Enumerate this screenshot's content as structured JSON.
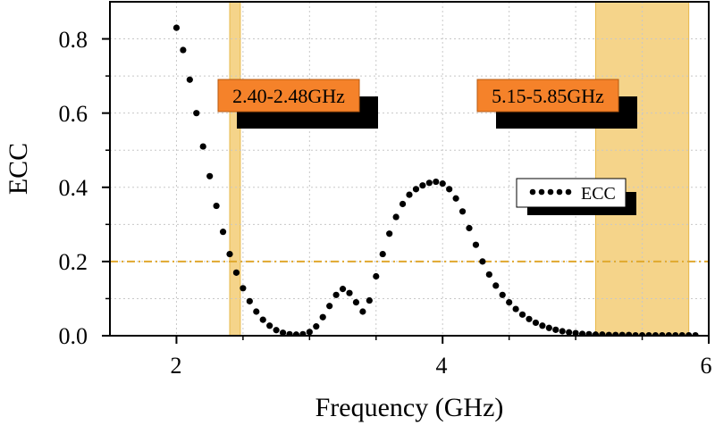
{
  "colors": {
    "band_fill": "#f5d48a",
    "band_stroke": "#e8b84a",
    "threshold": "#e0a82e",
    "grid": "#c8c8c8",
    "box_fill": "#f5822a",
    "shadow": "#000000",
    "series": "#000000"
  },
  "chart_data": {
    "type": "scatter",
    "title": "",
    "xlabel": "Frequency (GHz)",
    "ylabel": "ECC",
    "xlim": [
      1.5,
      6.0
    ],
    "ylim": [
      0.0,
      0.9
    ],
    "xticks": [
      2,
      4,
      6
    ],
    "yticks": [
      0.0,
      0.2,
      0.4,
      0.6,
      0.8
    ],
    "x_tick_labels": [
      "2",
      "4",
      "6"
    ],
    "y_tick_labels": [
      "0.0",
      "0.2",
      "0.4",
      "0.6",
      "0.8"
    ],
    "grid": true,
    "legend_position": "right-middle",
    "bands": [
      {
        "name": "band-2p4",
        "label": "2.40-2.48GHz",
        "x_start": 2.4,
        "x_end": 2.48
      },
      {
        "name": "band-5g",
        "label": "5.15-5.85GHz",
        "x_start": 5.15,
        "x_end": 5.85
      }
    ],
    "threshold": {
      "y": 0.2,
      "style": "dash-dot"
    },
    "series": [
      {
        "name": "ECC",
        "marker": "dotted-line",
        "x": [
          2.0,
          2.05,
          2.1,
          2.15,
          2.2,
          2.25,
          2.3,
          2.35,
          2.4,
          2.45,
          2.5,
          2.55,
          2.6,
          2.65,
          2.7,
          2.75,
          2.8,
          2.85,
          2.9,
          2.95,
          3.0,
          3.05,
          3.1,
          3.15,
          3.2,
          3.25,
          3.3,
          3.35,
          3.4,
          3.45,
          3.5,
          3.55,
          3.6,
          3.65,
          3.7,
          3.75,
          3.8,
          3.85,
          3.9,
          3.95,
          4.0,
          4.05,
          4.1,
          4.15,
          4.2,
          4.25,
          4.3,
          4.35,
          4.4,
          4.45,
          4.5,
          4.55,
          4.6,
          4.65,
          4.7,
          4.75,
          4.8,
          4.85,
          4.9,
          4.95,
          5.0,
          5.05,
          5.1,
          5.15,
          5.2,
          5.25,
          5.3,
          5.35,
          5.4,
          5.45,
          5.5,
          5.55,
          5.6,
          5.65,
          5.7,
          5.75,
          5.8,
          5.85,
          5.9
        ],
        "y": [
          0.83,
          0.77,
          0.69,
          0.6,
          0.51,
          0.43,
          0.35,
          0.28,
          0.22,
          0.17,
          0.128,
          0.093,
          0.065,
          0.043,
          0.027,
          0.015,
          0.008,
          0.004,
          0.003,
          0.004,
          0.01,
          0.025,
          0.05,
          0.08,
          0.11,
          0.126,
          0.115,
          0.09,
          0.065,
          0.095,
          0.16,
          0.22,
          0.275,
          0.32,
          0.355,
          0.38,
          0.395,
          0.405,
          0.412,
          0.415,
          0.41,
          0.395,
          0.37,
          0.335,
          0.29,
          0.245,
          0.2,
          0.165,
          0.135,
          0.11,
          0.09,
          0.072,
          0.057,
          0.045,
          0.035,
          0.027,
          0.021,
          0.016,
          0.012,
          0.009,
          0.007,
          0.005,
          0.004,
          0.003,
          0.003,
          0.002,
          0.002,
          0.002,
          0.002,
          0.001,
          0.001,
          0.001,
          0.001,
          0.001,
          0.001,
          0.001,
          0.001,
          0.001,
          0.001
        ]
      }
    ]
  }
}
